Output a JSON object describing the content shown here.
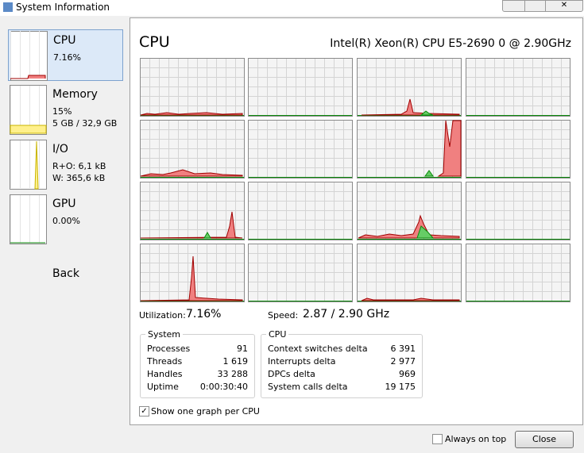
{
  "window": {
    "title": "System Information",
    "always_on_top": "Always on top",
    "close": "Close"
  },
  "sidebar": {
    "items": [
      {
        "name": "CPU",
        "lines": [
          "7.16%"
        ]
      },
      {
        "name": "Memory",
        "lines": [
          "15%",
          "5 GB / 32,9 GB"
        ]
      },
      {
        "name": "I/O",
        "lines": [
          "R+O: 6,1 kB",
          "W: 365,6 kB"
        ]
      },
      {
        "name": "GPU",
        "lines": [
          "0.00%"
        ]
      }
    ],
    "back": "Back"
  },
  "main": {
    "title": "CPU",
    "processor": "Intel(R) Xeon(R) CPU E5-2690 0 @ 2.90GHz",
    "utilization_label": "Utilization:",
    "utilization": "7.16%",
    "speed_label": "Speed:",
    "speed": "2.87 / 2.90 GHz",
    "system": {
      "title": "System",
      "rows": [
        [
          "Processes",
          "91"
        ],
        [
          "Threads",
          "1 619"
        ],
        [
          "Handles",
          "33 288"
        ],
        [
          "Uptime",
          "0:00:30:40"
        ]
      ]
    },
    "cpu": {
      "title": "CPU",
      "rows": [
        [
          "Context switches delta",
          "6 391"
        ],
        [
          "Interrupts delta",
          "2 977"
        ],
        [
          "DPCs delta",
          "969"
        ],
        [
          "System calls delta",
          "19 175"
        ]
      ]
    },
    "checkbox": "Show one graph per CPU"
  }
}
